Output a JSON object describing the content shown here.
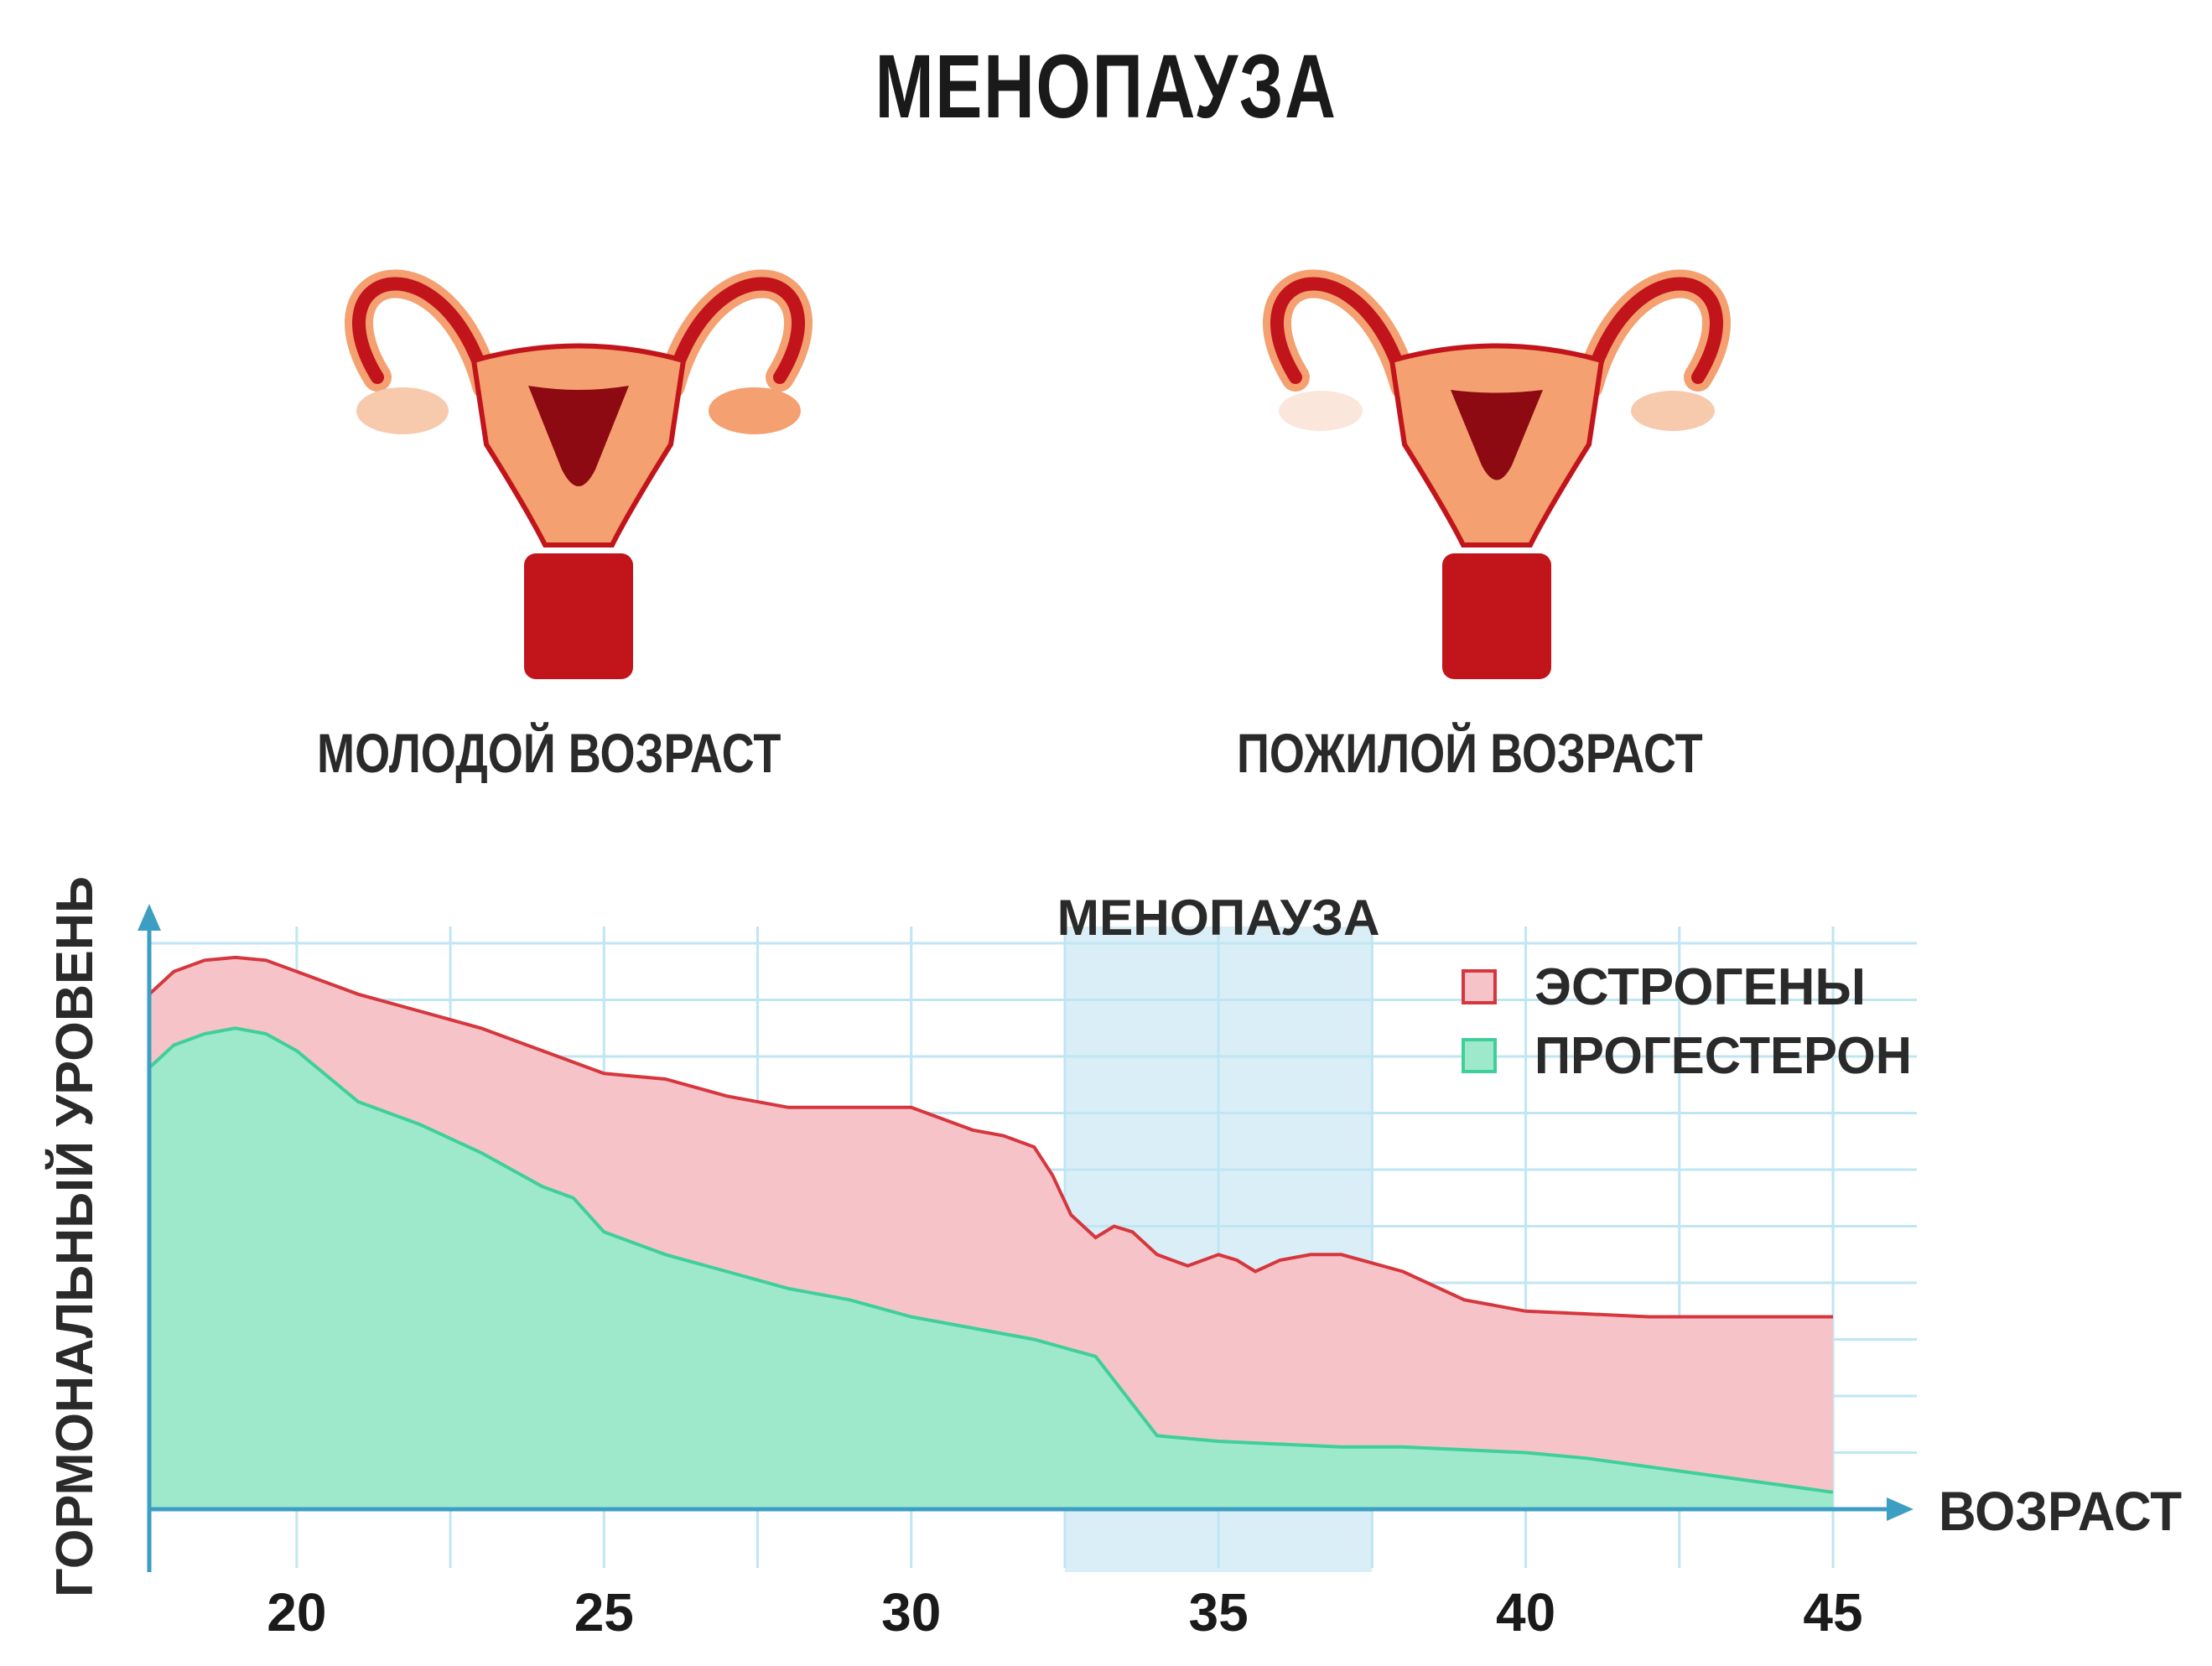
{
  "title": "МЕНОПАУЗА",
  "captions": {
    "young": "МОЛОДОЙ ВОЗРАСТ",
    "old": "ПОЖИЛОЙ ВОЗРАСТ"
  },
  "colors": {
    "estrogen_fill": "#f6c4c8",
    "estrogen_line": "#d6363d",
    "progesterone_fill": "#9ee8cc",
    "progesterone_line": "#3fcf99",
    "grid": "#bfe6f2",
    "axis": "#3d9ec4",
    "menopause_band": "#d9eef7",
    "uterus_outer": "#f4a070",
    "uterus_inner": "#c2141b",
    "uterus_light": "#f7c9ad"
  },
  "chart_data": {
    "type": "area",
    "title": "МЕНОПАУЗА",
    "xlabel": "ВОЗРАСТ",
    "ylabel": "ГОРМОНАЛЬНЫЙ УРОВЕНЬ",
    "xlim": [
      17.6,
      45
    ],
    "ylim": [
      0,
      100
    ],
    "xticks": [
      20,
      25,
      30,
      35,
      40,
      45
    ],
    "grid": true,
    "legend_position": "top-right",
    "shaded_region": {
      "label": "МЕНОПАУЗА",
      "from": 32.5,
      "to": 37.5
    },
    "series": [
      {
        "name": "ЭСТРОГЕНЫ",
        "x": [
          17.6,
          18,
          18.5,
          19,
          19.5,
          20,
          21,
          22,
          23,
          24,
          25,
          26,
          27,
          28,
          29,
          30,
          31,
          31.5,
          32,
          32.3,
          32.6,
          33,
          33.3,
          33.6,
          34,
          34.5,
          35,
          35.3,
          35.6,
          36,
          36.5,
          37,
          38,
          39,
          40,
          41,
          42,
          43,
          44,
          45
        ],
        "y": [
          91,
          95,
          97,
          97.5,
          97,
          95,
          91,
          88,
          85,
          81,
          77,
          76,
          73,
          71,
          71,
          71,
          67,
          66,
          64,
          59,
          52,
          48,
          50,
          49,
          45,
          43,
          45,
          44,
          42,
          44,
          45,
          45,
          42,
          37,
          35,
          34.5,
          34,
          34,
          34,
          34
        ]
      },
      {
        "name": "ПРОГЕСТЕРОН",
        "x": [
          17.6,
          18,
          18.5,
          19,
          19.5,
          20,
          21,
          22,
          23,
          24,
          24.5,
          25,
          26,
          27,
          28,
          29,
          30,
          31,
          32,
          33,
          34,
          35,
          36,
          37,
          38,
          39,
          40,
          41,
          42,
          43,
          44,
          45
        ],
        "y": [
          78,
          82,
          84,
          85,
          84,
          81,
          72,
          68,
          63,
          57,
          55,
          49,
          45,
          42,
          39,
          37,
          34,
          32,
          30,
          27,
          13,
          12,
          11.5,
          11,
          11,
          10.5,
          10,
          9,
          7.5,
          6,
          4.5,
          3
        ]
      }
    ]
  }
}
